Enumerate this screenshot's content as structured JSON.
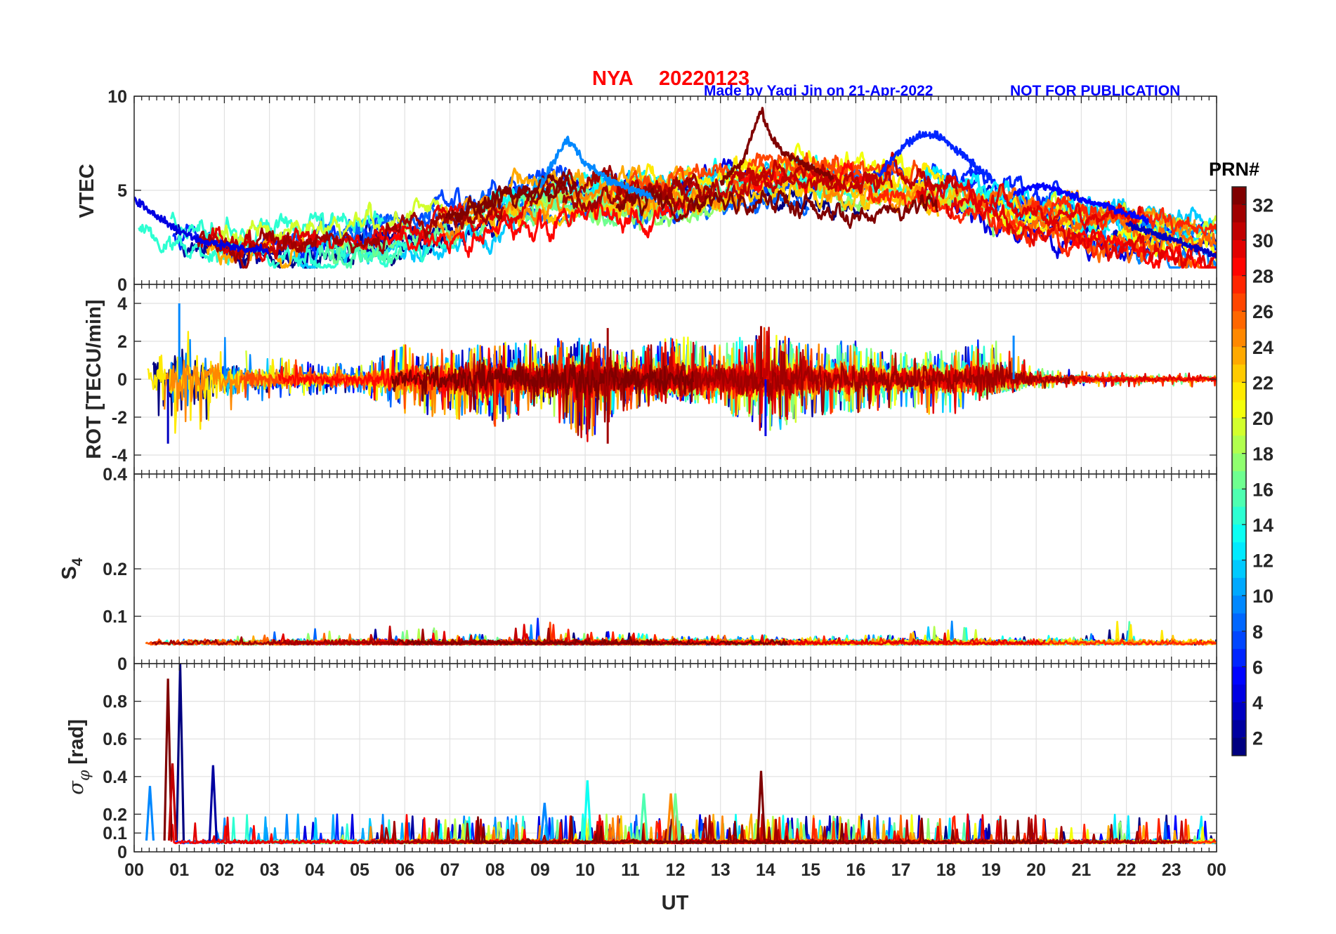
{
  "header": {
    "station": "NYA",
    "date": "20220123",
    "made_by": "Made by Yaqi Jin on 21-Apr-2022",
    "disclaimer": "NOT FOR PUBLICATION"
  },
  "colorbar": {
    "title": "PRN#",
    "range": [
      1,
      32
    ],
    "tick_values": [
      2,
      4,
      6,
      8,
      10,
      12,
      14,
      16,
      18,
      20,
      22,
      24,
      26,
      28,
      30,
      32
    ],
    "tick_labels": [
      "2",
      "4",
      "6",
      "8",
      "10",
      "12",
      "14",
      "16",
      "18",
      "20",
      "22",
      "24",
      "26",
      "28",
      "30",
      "32"
    ]
  },
  "chart_data": [
    {
      "type": "line",
      "title": "NYA   20220123",
      "ylabel": "VTEC",
      "xlabel": "",
      "xlim": [
        0,
        24
      ],
      "ylim": [
        0,
        10
      ],
      "ytick_values": [
        0,
        5,
        10
      ],
      "ytick_labels": [
        "0",
        "5",
        "10"
      ],
      "grid": true,
      "series_description": "32 PRN traces, ~1-8 TECU, peak near 9.3 at 14 UT",
      "series": [
        {
          "name": "PRN 4",
          "x": [
            0.0,
            0.5,
            1.0,
            1.5,
            2.0,
            2.5,
            3.0
          ],
          "values": [
            4.6,
            3.6,
            2.8,
            2.3,
            2.1,
            1.9,
            1.8
          ]
        },
        {
          "name": "PRN 9",
          "x": [
            9.0,
            9.3,
            9.6,
            10.0,
            10.5,
            11.0,
            11.5
          ],
          "values": [
            5.2,
            6.5,
            7.8,
            6.4,
            5.6,
            5.1,
            4.6
          ]
        },
        {
          "name": "PRN 6",
          "x": [
            16.5,
            17.0,
            17.4,
            17.8,
            18.2,
            18.6,
            19.0
          ],
          "values": [
            5.8,
            7.2,
            7.9,
            8.0,
            7.2,
            6.4,
            5.6
          ]
        },
        {
          "name": "PRN 32",
          "x": [
            13.0,
            13.5,
            13.9,
            14.1,
            14.4,
            15.0,
            15.5
          ],
          "values": [
            5.4,
            6.6,
            9.3,
            7.9,
            7.0,
            6.2,
            5.7
          ]
        },
        {
          "name": "PRN 5",
          "x": [
            19.5,
            20.0,
            20.5,
            21.0,
            21.5,
            22.0,
            22.5
          ],
          "values": [
            4.8,
            5.3,
            5.0,
            4.5,
            4.2,
            3.8,
            3.4
          ]
        },
        {
          "name": "PRN 3",
          "x": [
            22.0,
            22.5,
            23.0,
            23.5,
            24.0
          ],
          "values": [
            3.2,
            2.8,
            2.4,
            2.0,
            1.5
          ]
        }
      ]
    },
    {
      "type": "line",
      "ylabel": "ROT [TECU/min]",
      "xlabel": "",
      "xlim": [
        0,
        24
      ],
      "ylim": [
        -5,
        5
      ],
      "ytick_values": [
        -4,
        -2,
        0,
        2,
        4
      ],
      "ytick_labels": [
        "-4",
        "-2",
        "0",
        "2",
        "4"
      ],
      "grid": true,
      "series_description": "ROT fluctuations around 0, mostly within +/-2, extremes near +4 and -3.4",
      "envelope": {
        "x": [
          0,
          1,
          2,
          3,
          4,
          5,
          6,
          7,
          8,
          9,
          10,
          11,
          12,
          13,
          14,
          15,
          16,
          17,
          18,
          19,
          20,
          21,
          22,
          23,
          24
        ],
        "max": [
          1.5,
          4.0,
          2.2,
          1.2,
          0.9,
          0.8,
          1.9,
          1.5,
          2.0,
          2.1,
          2.2,
          1.5,
          2.4,
          1.8,
          2.8,
          1.8,
          2.1,
          1.4,
          1.5,
          2.3,
          0.6,
          0.5,
          0.4,
          0.4,
          0.3
        ],
        "min": [
          -1.5,
          -3.4,
          -2.0,
          -1.0,
          -0.8,
          -0.7,
          -1.9,
          -2.0,
          -2.5,
          -1.5,
          -3.4,
          -1.6,
          -1.2,
          -1.6,
          -3.0,
          -2.0,
          -1.8,
          -1.5,
          -2.1,
          -0.8,
          -0.5,
          -0.4,
          -0.4,
          -0.4,
          -0.4
        ]
      }
    },
    {
      "type": "line",
      "ylabel": "S4",
      "xlabel": "",
      "xlim": [
        0,
        24
      ],
      "ylim": [
        0,
        0.4
      ],
      "ytick_values": [
        0,
        0.1,
        0.2,
        0.4
      ],
      "ytick_labels": [
        "0",
        "0.1",
        "0.2",
        "0.4"
      ],
      "grid": true,
      "series_description": "S4 index mostly 0.03-0.06, spikes near 0.1",
      "envelope": {
        "x": [
          0,
          1,
          2,
          3,
          4,
          5,
          6,
          7,
          8,
          9,
          10,
          11,
          12,
          13,
          14,
          15,
          16,
          17,
          18,
          19,
          20,
          21,
          22,
          23,
          24
        ],
        "max": [
          0.075,
          0.06,
          0.06,
          0.07,
          0.08,
          0.06,
          0.095,
          0.07,
          0.06,
          0.1,
          0.07,
          0.065,
          0.06,
          0.06,
          0.06,
          0.06,
          0.06,
          0.06,
          0.095,
          0.06,
          0.06,
          0.06,
          0.1,
          0.07,
          0.06
        ],
        "min": [
          0.03,
          0.025,
          0.025,
          0.03,
          0.03,
          0.03,
          0.03,
          0.03,
          0.03,
          0.03,
          0.03,
          0.03,
          0.03,
          0.03,
          0.03,
          0.03,
          0.03,
          0.03,
          0.03,
          0.03,
          0.03,
          0.03,
          0.03,
          0.03,
          0.03
        ]
      }
    },
    {
      "type": "line",
      "ylabel": "σφ [rad]",
      "xlabel": "UT",
      "xlim": [
        0,
        24
      ],
      "ylim": [
        0,
        1
      ],
      "ytick_values": [
        0,
        0.1,
        0.2,
        0.4,
        0.6,
        0.8
      ],
      "ytick_labels": [
        "0",
        "0.1",
        "0.2",
        "0.4",
        "0.6",
        "0.8"
      ],
      "xtick_values": [
        0,
        1,
        2,
        3,
        4,
        5,
        6,
        7,
        8,
        9,
        10,
        11,
        12,
        13,
        14,
        15,
        16,
        17,
        18,
        19,
        20,
        21,
        22,
        23,
        24
      ],
      "xtick_labels": [
        "00",
        "01",
        "02",
        "03",
        "04",
        "05",
        "06",
        "07",
        "08",
        "09",
        "10",
        "11",
        "12",
        "13",
        "14",
        "15",
        "16",
        "17",
        "18",
        "19",
        "20",
        "21",
        "22",
        "23",
        "00"
      ],
      "grid": true,
      "series_description": "phase scintillation mostly below 0.15 rad with spikes",
      "spikes": [
        {
          "x": 0.75,
          "value": 0.92,
          "prn": 32
        },
        {
          "x": 1.02,
          "value": 1.0,
          "prn": 1
        },
        {
          "x": 0.85,
          "value": 0.47,
          "prn": 30
        },
        {
          "x": 1.75,
          "value": 0.46,
          "prn": 2
        },
        {
          "x": 0.35,
          "value": 0.35,
          "prn": 9
        },
        {
          "x": 13.9,
          "value": 0.43,
          "prn": 32
        },
        {
          "x": 10.05,
          "value": 0.38,
          "prn": 13
        },
        {
          "x": 11.3,
          "value": 0.31,
          "prn": 15
        },
        {
          "x": 12.0,
          "value": 0.31,
          "prn": 16
        },
        {
          "x": 11.9,
          "value": 0.31,
          "prn": 24
        },
        {
          "x": 9.1,
          "value": 0.26,
          "prn": 9
        }
      ]
    }
  ]
}
